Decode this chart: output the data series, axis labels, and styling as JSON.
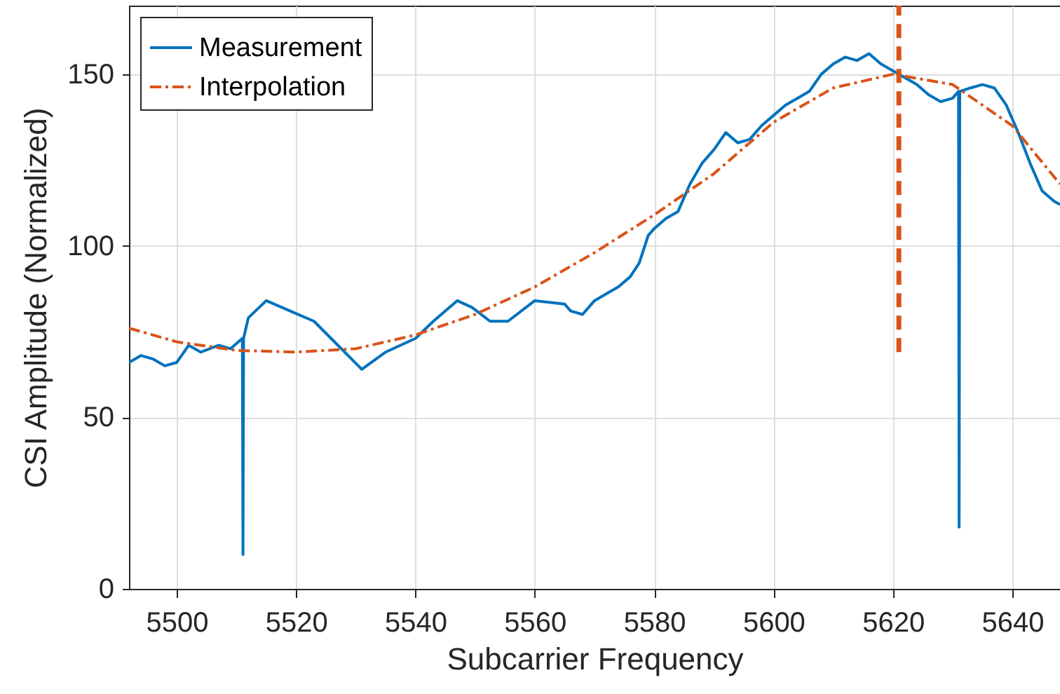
{
  "chart_data": {
    "type": "line",
    "xlabel": "Subcarrier Frequency",
    "ylabel": "CSI Amplitude (Normalized)",
    "xlim": [
      5492,
      5648
    ],
    "ylim": [
      0,
      170
    ],
    "xticks": [
      5500,
      5520,
      5540,
      5560,
      5580,
      5600,
      5620,
      5640
    ],
    "yticks": [
      0,
      50,
      100,
      150
    ],
    "grid": true,
    "legend": "top left",
    "marker": "none",
    "series": [
      {
        "name": "Measurement",
        "color": "#0072bd",
        "line_style": "solid",
        "x": [
          5492,
          5494,
          5496,
          5498,
          5500,
          5502,
          5504,
          5507,
          5509,
          5511,
          5511.1,
          5511.2,
          5512,
          5515,
          5519,
          5523,
          5527,
          5531,
          5535,
          5540,
          5543,
          5547,
          5549.5,
          5552.5,
          5555.5,
          5560,
          5565,
          5566,
          5568,
          5570,
          5572,
          5574,
          5576,
          5577.5,
          5579,
          5580,
          5582,
          5584,
          5586,
          5588,
          5590,
          5592,
          5594,
          5596,
          5598,
          5600,
          5602,
          5604,
          5606,
          5608,
          5610,
          5612,
          5614,
          5616,
          5618,
          5620,
          5622,
          5624,
          5626,
          5628,
          5630,
          5631,
          5631.1,
          5631.2,
          5633,
          5635,
          5637,
          5639,
          5641,
          5643,
          5645,
          5647,
          5648
        ],
        "values": [
          66,
          68,
          67,
          65,
          66,
          71,
          69,
          71,
          70,
          73,
          10,
          73,
          79,
          84,
          81,
          78,
          71,
          64,
          69,
          73,
          78,
          84,
          82,
          78,
          78,
          84,
          83,
          81,
          80,
          84,
          86,
          88,
          91,
          95,
          103,
          105,
          108,
          110,
          118,
          124,
          128,
          133,
          130,
          131,
          135,
          138,
          141,
          143,
          145,
          150,
          153,
          155,
          154,
          156,
          153,
          151,
          149,
          147,
          144,
          142,
          143,
          145,
          18,
          145,
          146,
          147,
          146,
          141,
          133,
          124,
          116,
          113,
          112
        ]
      },
      {
        "name": "Interpolation",
        "color": "#d95319",
        "line_style": "dashdot",
        "x": [
          5492,
          5500,
          5510,
          5520,
          5530,
          5540,
          5550,
          5560,
          5570,
          5580,
          5590,
          5600,
          5610,
          5620,
          5630,
          5640,
          5648
        ],
        "values": [
          76,
          72,
          69.5,
          69,
          70,
          74,
          80,
          88,
          98,
          109,
          121,
          136,
          146,
          150,
          147,
          135,
          118
        ]
      },
      {
        "color": "#d95319",
        "line_style": "dashed",
        "x": [
          5621,
          5621
        ],
        "values": [
          69,
          170
        ]
      }
    ]
  }
}
